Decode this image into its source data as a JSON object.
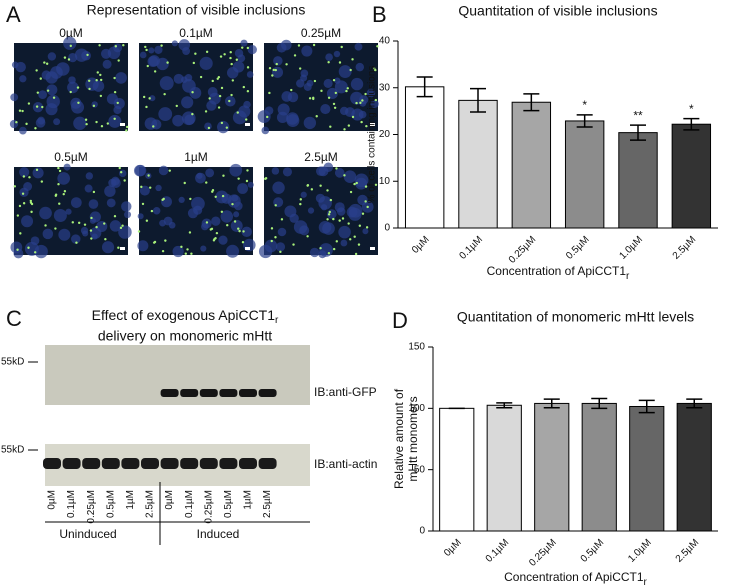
{
  "panel_a": {
    "letter": "A",
    "title": "Representation of visible inclusions",
    "images": [
      "0µM",
      "0.1µM",
      "0.25µM",
      "0.5µM",
      "1µM",
      "2.5µM"
    ]
  },
  "panel_c": {
    "letter": "C",
    "title_line1": "Effect of exogenous ApiCCT1",
    "title_sub": "r",
    "title_line2": "delivery on monomeric mHtt",
    "markers": [
      "55kD",
      "55kD"
    ],
    "blots": [
      "IB:anti-GFP",
      "IB:anti-actin"
    ],
    "lanes": [
      "0µM",
      "0.1µM",
      "0.25µM",
      "0.5µM",
      "1µM",
      "2.5µM",
      "0µM",
      "0.1µM",
      "0.25µM",
      "0.5µM",
      "1µM",
      "2.5µM"
    ],
    "groups": [
      "Uninduced",
      "Induced"
    ]
  },
  "chart_data": [
    {
      "type": "bar",
      "letter": "B",
      "title": "Quantitation of visible inclusions",
      "ylabel": "% of cells containing inclusions",
      "xlabel": "Concentration of ApiCCT1",
      "xlabel_sub": "r",
      "categories": [
        "0µM",
        "0.1µM",
        "0.25µM",
        "0.5µM",
        "1.0µM",
        "2.5µM"
      ],
      "values": [
        30.2,
        27.3,
        26.9,
        22.9,
        20.4,
        22.2
      ],
      "errors": [
        2.1,
        2.5,
        1.8,
        1.3,
        1.6,
        1.2
      ],
      "annotations": [
        null,
        null,
        null,
        "*",
        "**",
        "*"
      ],
      "colors": [
        "#ffffff",
        "#d9d9d9",
        "#a6a6a6",
        "#8c8c8c",
        "#666666",
        "#333333"
      ],
      "ylim": [
        0,
        40
      ],
      "yticks": [
        0,
        10,
        20,
        30,
        40
      ]
    },
    {
      "type": "bar",
      "letter": "D",
      "title": "Quantitation of monomeric mHtt levels",
      "ylabel": "Relative amount of",
      "ylabel2": "mHtt monomers",
      "xlabel": "Concentration of ApiCCT1",
      "xlabel_sub": "r",
      "categories": [
        "0µM",
        "0.1µM",
        "0.25µM",
        "0.5µM",
        "1.0µM",
        "2.5µM"
      ],
      "values": [
        100,
        102.5,
        104,
        104,
        101.5,
        104
      ],
      "errors": [
        0,
        2,
        3.5,
        4,
        5,
        3.5
      ],
      "colors": [
        "#ffffff",
        "#d9d9d9",
        "#a6a6a6",
        "#8c8c8c",
        "#666666",
        "#333333"
      ],
      "ylim": [
        0,
        150
      ],
      "yticks": [
        0,
        50,
        100,
        150
      ]
    }
  ]
}
